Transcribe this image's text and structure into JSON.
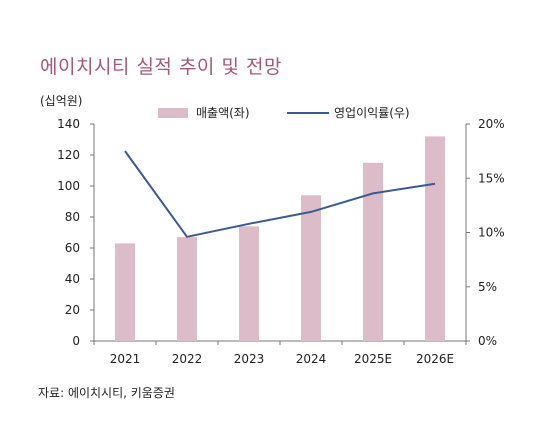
{
  "title": "에이치시티 실적 추이 및 전망",
  "unit_label": "(십억원)",
  "source": "자료: 에이치시티, 키움증권",
  "colors": {
    "bar": "#dcbcc8",
    "line": "#3b5a93",
    "title": "#a5587a"
  },
  "chart_data": {
    "type": "bar+line",
    "categories": [
      "2021",
      "2022",
      "2023",
      "2024",
      "2025E",
      "2026E"
    ],
    "series": [
      {
        "name": "매출액(좌)",
        "type": "bar",
        "axis": "left",
        "values": [
          63,
          67,
          74,
          94,
          115,
          132
        ]
      },
      {
        "name": "영업이익률(우)",
        "type": "line",
        "axis": "right",
        "values": [
          17.5,
          9.6,
          10.8,
          11.9,
          13.6,
          14.5
        ]
      }
    ],
    "left_axis": {
      "ylim": [
        0,
        140
      ],
      "ticks": [
        "0",
        "20",
        "40",
        "60",
        "80",
        "100",
        "120",
        "140"
      ]
    },
    "right_axis": {
      "ylim": [
        0,
        20
      ],
      "ticks": [
        "0%",
        "5%",
        "10%",
        "15%",
        "20%"
      ]
    },
    "legend_position": "top"
  }
}
